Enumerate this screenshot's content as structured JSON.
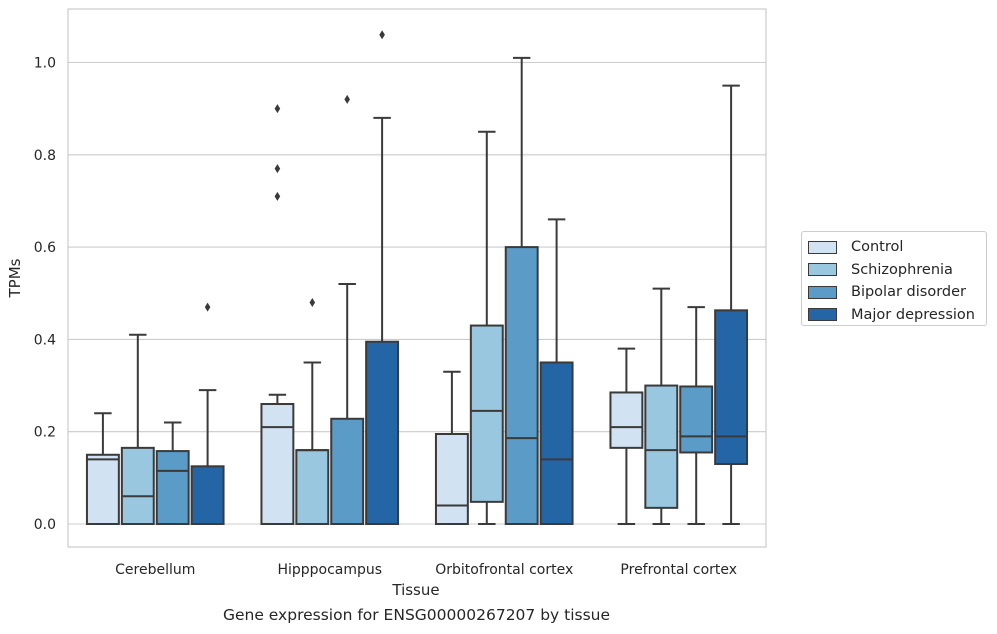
{
  "chart_data": {
    "type": "box",
    "xlabel": "Tissue",
    "ylabel": "TPMs",
    "ylim": [
      -0.05,
      1.115
    ],
    "yticks": [
      0.0,
      0.2,
      0.4,
      0.6,
      0.8,
      1.0
    ],
    "ytick_labels": [
      "0.0",
      "0.2",
      "0.4",
      "0.6",
      "0.8",
      "1.0"
    ],
    "categories": [
      "Cerebellum",
      "Hipppocampus",
      "Orbitofrontal cortex",
      "Prefrontal cortex"
    ],
    "grid": "horizontal",
    "legend_position": "right, outside",
    "series": [
      {
        "name": "Control",
        "color": "#d1e2f2",
        "boxes": [
          {
            "whislo": 0.0,
            "q1": 0.0,
            "med": 0.14,
            "q3": 0.15,
            "whishi": 0.24,
            "fliers": []
          },
          {
            "whislo": 0.0,
            "q1": 0.0,
            "med": 0.21,
            "q3": 0.26,
            "whishi": 0.28,
            "fliers": [
              0.71,
              0.77,
              0.9
            ]
          },
          {
            "whislo": 0.0,
            "q1": 0.0,
            "med": 0.04,
            "q3": 0.195,
            "whishi": 0.33,
            "fliers": []
          },
          {
            "whislo": 0.0,
            "q1": 0.165,
            "med": 0.21,
            "q3": 0.285,
            "whishi": 0.38,
            "fliers": []
          }
        ]
      },
      {
        "name": "Schizophrenia",
        "color": "#9ac7e0",
        "boxes": [
          {
            "whislo": 0.0,
            "q1": 0.0,
            "med": 0.06,
            "q3": 0.165,
            "whishi": 0.41,
            "fliers": []
          },
          {
            "whislo": 0.0,
            "q1": 0.0,
            "med": 0.16,
            "q3": 0.16,
            "whishi": 0.35,
            "fliers": [
              0.48
            ]
          },
          {
            "whislo": 0.0,
            "q1": 0.048,
            "med": 0.245,
            "q3": 0.43,
            "whishi": 0.85,
            "fliers": []
          },
          {
            "whislo": 0.0,
            "q1": 0.035,
            "med": 0.16,
            "q3": 0.3,
            "whishi": 0.51,
            "fliers": []
          }
        ]
      },
      {
        "name": "Bipolar disorder",
        "color": "#5b9bc8",
        "boxes": [
          {
            "whislo": 0.0,
            "q1": 0.0,
            "med": 0.115,
            "q3": 0.158,
            "whishi": 0.22,
            "fliers": []
          },
          {
            "whislo": 0.0,
            "q1": 0.0,
            "med": 0.0,
            "q3": 0.228,
            "whishi": 0.52,
            "fliers": [
              0.92
            ]
          },
          {
            "whislo": 0.0,
            "q1": 0.0,
            "med": 0.186,
            "q3": 0.6,
            "whishi": 1.01,
            "fliers": []
          },
          {
            "whislo": 0.0,
            "q1": 0.155,
            "med": 0.19,
            "q3": 0.298,
            "whishi": 0.47,
            "fliers": []
          }
        ]
      },
      {
        "name": "Major depression",
        "color": "#2465a6",
        "boxes": [
          {
            "whislo": 0.0,
            "q1": 0.0,
            "med": 0.0,
            "q3": 0.125,
            "whishi": 0.29,
            "fliers": [
              0.47
            ]
          },
          {
            "whislo": 0.0,
            "q1": 0.0,
            "med": 0.0,
            "q3": 0.395,
            "whishi": 0.88,
            "fliers": [
              1.06
            ]
          },
          {
            "whislo": 0.0,
            "q1": 0.0,
            "med": 0.14,
            "q3": 0.35,
            "whishi": 0.66,
            "fliers": []
          },
          {
            "whislo": 0.0,
            "q1": 0.13,
            "med": 0.19,
            "q3": 0.463,
            "whishi": 0.95,
            "fliers": []
          }
        ]
      }
    ]
  },
  "caption": "Gene expression for ENSG00000267207 by tissue",
  "colors": {
    "grid": "#cccccc",
    "spine": "#cccccc",
    "box_edge": "#3a3a3a"
  }
}
